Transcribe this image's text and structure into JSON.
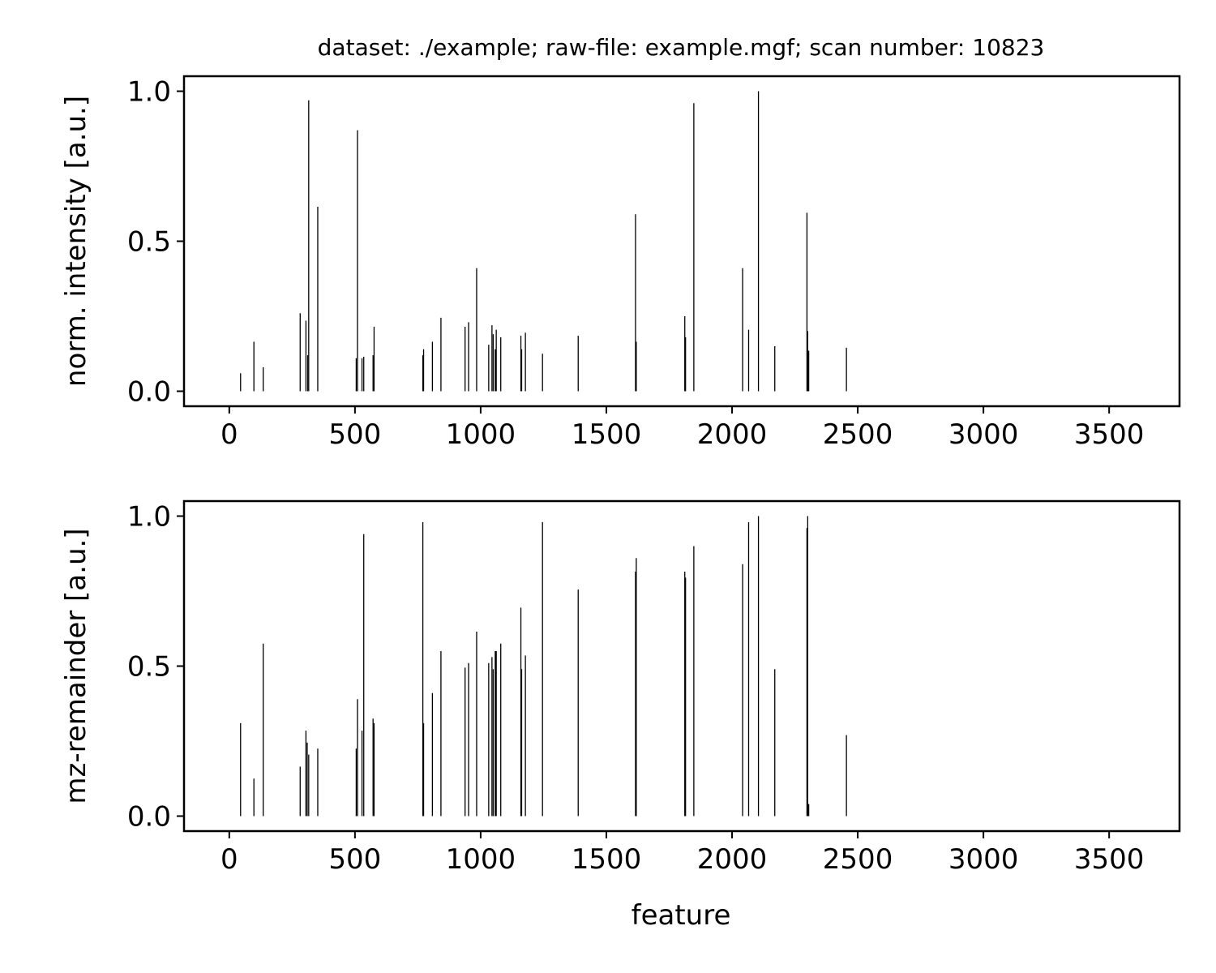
{
  "title": "dataset: ./example; raw-file: example.mgf; scan number: 10823",
  "xlabel": "feature",
  "chart_data": [
    {
      "type": "bar",
      "style": "stem",
      "title": "dataset: ./example; raw-file: example.mgf; scan number: 10823",
      "xlabel": "",
      "ylabel": "norm. intensity [a.u.]",
      "xlim": [
        -180,
        3780
      ],
      "ylim": [
        -0.05,
        1.05
      ],
      "xticks": [
        0,
        500,
        1000,
        1500,
        2000,
        2500,
        3000,
        3500
      ],
      "yticks": [
        0.0,
        0.5,
        1.0
      ],
      "xtick_labels": [
        "0",
        "500",
        "1000",
        "1500",
        "2000",
        "2500",
        "3000",
        "3500"
      ],
      "ytick_labels": [
        "0.0",
        "0.5",
        "1.0"
      ],
      "bar_color": "#000000",
      "grid": false,
      "points": [
        {
          "x": 45,
          "y": 0.06
        },
        {
          "x": 98,
          "y": 0.165
        },
        {
          "x": 135,
          "y": 0.08
        },
        {
          "x": 282,
          "y": 0.26
        },
        {
          "x": 305,
          "y": 0.235
        },
        {
          "x": 312,
          "y": 0.12
        },
        {
          "x": 316,
          "y": 0.97
        },
        {
          "x": 352,
          "y": 0.615
        },
        {
          "x": 505,
          "y": 0.11
        },
        {
          "x": 510,
          "y": 0.87
        },
        {
          "x": 528,
          "y": 0.11
        },
        {
          "x": 535,
          "y": 0.115
        },
        {
          "x": 572,
          "y": 0.12
        },
        {
          "x": 576,
          "y": 0.215
        },
        {
          "x": 770,
          "y": 0.12
        },
        {
          "x": 773,
          "y": 0.14
        },
        {
          "x": 808,
          "y": 0.165
        },
        {
          "x": 842,
          "y": 0.245
        },
        {
          "x": 938,
          "y": 0.215
        },
        {
          "x": 952,
          "y": 0.23
        },
        {
          "x": 984,
          "y": 0.41
        },
        {
          "x": 1032,
          "y": 0.155
        },
        {
          "x": 1045,
          "y": 0.22
        },
        {
          "x": 1050,
          "y": 0.19
        },
        {
          "x": 1058,
          "y": 0.14
        },
        {
          "x": 1062,
          "y": 0.205
        },
        {
          "x": 1080,
          "y": 0.18
        },
        {
          "x": 1160,
          "y": 0.185
        },
        {
          "x": 1163,
          "y": 0.14
        },
        {
          "x": 1178,
          "y": 0.195
        },
        {
          "x": 1246,
          "y": 0.125
        },
        {
          "x": 1388,
          "y": 0.185
        },
        {
          "x": 1616,
          "y": 0.59
        },
        {
          "x": 1619,
          "y": 0.165
        },
        {
          "x": 1812,
          "y": 0.25
        },
        {
          "x": 1815,
          "y": 0.18
        },
        {
          "x": 1848,
          "y": 0.96
        },
        {
          "x": 2042,
          "y": 0.41
        },
        {
          "x": 2066,
          "y": 0.205
        },
        {
          "x": 2105,
          "y": 1.0
        },
        {
          "x": 2170,
          "y": 0.15
        },
        {
          "x": 2298,
          "y": 0.595
        },
        {
          "x": 2301,
          "y": 0.2
        },
        {
          "x": 2305,
          "y": 0.135
        },
        {
          "x": 2455,
          "y": 0.145
        }
      ]
    },
    {
      "type": "bar",
      "style": "stem",
      "title": "",
      "xlabel": "feature",
      "ylabel": "mz-remainder [a.u.]",
      "xlim": [
        -180,
        3780
      ],
      "ylim": [
        -0.05,
        1.05
      ],
      "xticks": [
        0,
        500,
        1000,
        1500,
        2000,
        2500,
        3000,
        3500
      ],
      "yticks": [
        0.0,
        0.5,
        1.0
      ],
      "xtick_labels": [
        "0",
        "500",
        "1000",
        "1500",
        "2000",
        "2500",
        "3000",
        "3500"
      ],
      "ytick_labels": [
        "0.0",
        "0.5",
        "1.0"
      ],
      "bar_color": "#000000",
      "grid": false,
      "points": [
        {
          "x": 45,
          "y": 0.31
        },
        {
          "x": 98,
          "y": 0.125
        },
        {
          "x": 135,
          "y": 0.575
        },
        {
          "x": 282,
          "y": 0.165
        },
        {
          "x": 305,
          "y": 0.285
        },
        {
          "x": 310,
          "y": 0.245
        },
        {
          "x": 316,
          "y": 0.205
        },
        {
          "x": 352,
          "y": 0.225
        },
        {
          "x": 505,
          "y": 0.225
        },
        {
          "x": 510,
          "y": 0.39
        },
        {
          "x": 528,
          "y": 0.285
        },
        {
          "x": 535,
          "y": 0.94
        },
        {
          "x": 572,
          "y": 0.325
        },
        {
          "x": 576,
          "y": 0.31
        },
        {
          "x": 770,
          "y": 0.98
        },
        {
          "x": 773,
          "y": 0.31
        },
        {
          "x": 808,
          "y": 0.41
        },
        {
          "x": 842,
          "y": 0.55
        },
        {
          "x": 938,
          "y": 0.495
        },
        {
          "x": 952,
          "y": 0.51
        },
        {
          "x": 984,
          "y": 0.615
        },
        {
          "x": 1032,
          "y": 0.51
        },
        {
          "x": 1045,
          "y": 0.53
        },
        {
          "x": 1050,
          "y": 0.49
        },
        {
          "x": 1058,
          "y": 0.55
        },
        {
          "x": 1062,
          "y": 0.55
        },
        {
          "x": 1080,
          "y": 0.575
        },
        {
          "x": 1160,
          "y": 0.695
        },
        {
          "x": 1163,
          "y": 0.49
        },
        {
          "x": 1178,
          "y": 0.535
        },
        {
          "x": 1246,
          "y": 0.98
        },
        {
          "x": 1388,
          "y": 0.755
        },
        {
          "x": 1616,
          "y": 0.815
        },
        {
          "x": 1619,
          "y": 0.86
        },
        {
          "x": 1812,
          "y": 0.815
        },
        {
          "x": 1815,
          "y": 0.795
        },
        {
          "x": 1848,
          "y": 0.9
        },
        {
          "x": 2042,
          "y": 0.84
        },
        {
          "x": 2066,
          "y": 0.98
        },
        {
          "x": 2105,
          "y": 1.0
        },
        {
          "x": 2170,
          "y": 0.49
        },
        {
          "x": 2298,
          "y": 0.96
        },
        {
          "x": 2301,
          "y": 1.0
        },
        {
          "x": 2305,
          "y": 0.04
        },
        {
          "x": 2455,
          "y": 0.27
        }
      ]
    }
  ]
}
